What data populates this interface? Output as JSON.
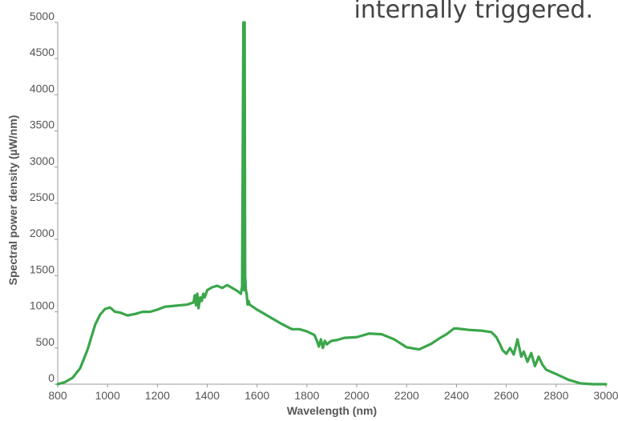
{
  "chart_data": {
    "type": "line",
    "title": "",
    "annotation": "internally triggered.",
    "xlabel": "Wavelength (nm)",
    "ylabel": "Spectral power density (µW/nm)",
    "xlim": [
      800,
      3000
    ],
    "ylim": [
      0,
      5000
    ],
    "x_ticks": [
      800,
      1000,
      1200,
      1400,
      1600,
      1800,
      2000,
      2200,
      2400,
      2600,
      2800,
      3000
    ],
    "y_ticks": [
      0,
      500,
      1000,
      1500,
      2000,
      2500,
      3000,
      3500,
      4000,
      4500,
      5000
    ],
    "grid": false,
    "series": [
      {
        "color": "#3aa64a",
        "x": [
          800,
          830,
          860,
          890,
          920,
          950,
          970,
          990,
          1010,
          1030,
          1050,
          1080,
          1110,
          1140,
          1170,
          1200,
          1230,
          1260,
          1290,
          1320,
          1345,
          1350,
          1355,
          1360,
          1365,
          1372,
          1378,
          1384,
          1390,
          1400,
          1420,
          1440,
          1460,
          1480,
          1500,
          1520,
          1535,
          1540,
          1545,
          1548,
          1550,
          1552,
          1555,
          1558,
          1562,
          1566,
          1570,
          1600,
          1650,
          1700,
          1740,
          1770,
          1800,
          1830,
          1840,
          1848,
          1856,
          1864,
          1872,
          1880,
          1890,
          1900,
          1920,
          1950,
          2000,
          2050,
          2100,
          2150,
          2200,
          2250,
          2300,
          2330,
          2360,
          2390,
          2400,
          2450,
          2500,
          2540,
          2560,
          2575,
          2585,
          2600,
          2615,
          2630,
          2645,
          2660,
          2670,
          2685,
          2700,
          2715,
          2730,
          2745,
          2760,
          2800,
          2850,
          2900,
          2950,
          3000
        ],
        "y": [
          0,
          30,
          90,
          220,
          480,
          820,
          960,
          1040,
          1060,
          1000,
          990,
          950,
          970,
          1000,
          1000,
          1030,
          1070,
          1080,
          1090,
          1100,
          1130,
          1230,
          1090,
          1250,
          1050,
          1200,
          1150,
          1250,
          1200,
          1300,
          1340,
          1360,
          1330,
          1370,
          1330,
          1290,
          1250,
          1350,
          5000,
          1300,
          5000,
          1500,
          1300,
          1250,
          1100,
          1150,
          1100,
          1030,
          930,
          830,
          760,
          760,
          730,
          680,
          600,
          520,
          620,
          500,
          600,
          550,
          580,
          600,
          610,
          640,
          650,
          700,
          690,
          620,
          510,
          480,
          560,
          630,
          690,
          770,
          770,
          750,
          740,
          720,
          650,
          550,
          470,
          420,
          500,
          410,
          620,
          380,
          450,
          310,
          430,
          250,
          380,
          270,
          200,
          140,
          60,
          10,
          0,
          0
        ],
        "step_wise_peak": true
      }
    ]
  }
}
